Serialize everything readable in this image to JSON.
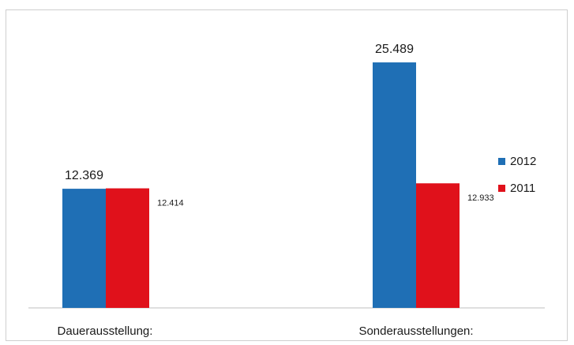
{
  "chart_data": {
    "type": "bar",
    "categories": [
      "Dauerausstellung:",
      "Sonderausstellungen:"
    ],
    "series": [
      {
        "name": "2012",
        "values": [
          12369,
          25489
        ],
        "labels": [
          "12.369",
          "25.489"
        ],
        "color": "#1f6fb5"
      },
      {
        "name": "2011",
        "values": [
          12414,
          12933
        ],
        "labels": [
          "12.414",
          "12.933"
        ],
        "color": "#e0111b"
      }
    ],
    "ylim": [
      0,
      30000
    ],
    "grid": false,
    "legend": "right"
  }
}
